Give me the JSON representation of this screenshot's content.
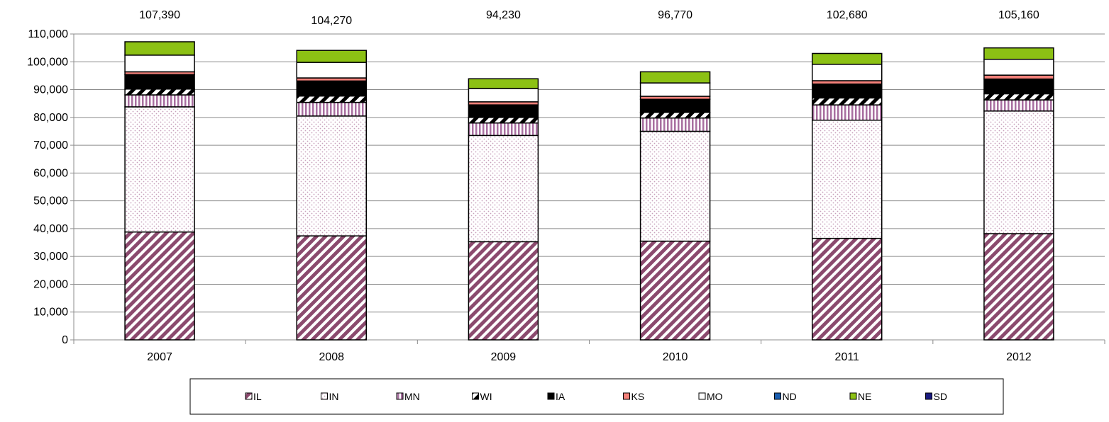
{
  "chart_data": {
    "type": "bar",
    "stacked": true,
    "categories": [
      "2007",
      "2008",
      "2009",
      "2010",
      "2011",
      "2012"
    ],
    "totals": [
      "107,390",
      "104,270",
      "94,230",
      "96,770",
      "102,680",
      "105,160"
    ],
    "ylim": [
      0,
      110000
    ],
    "yticks": [
      "0",
      "10,000",
      "20,000",
      "30,000",
      "40,000",
      "50,000",
      "60,000",
      "70,000",
      "80,000",
      "90,000",
      "100,000",
      "110,000"
    ],
    "grid": true,
    "legend_position": "bottom",
    "series": [
      {
        "name": "IL",
        "color": "#8b4a6e",
        "pattern": "diag-hatch",
        "values": [
          38800,
          37400,
          35300,
          35500,
          36500,
          38200
        ]
      },
      {
        "name": "IN",
        "color": "#d9b3cc",
        "pattern": "dots",
        "values": [
          45000,
          43100,
          38200,
          39500,
          42500,
          44100
        ]
      },
      {
        "name": "MN",
        "color": "#a86fa0",
        "pattern": "vertical-lines",
        "values": [
          4300,
          4900,
          4500,
          4800,
          5500,
          4000
        ]
      },
      {
        "name": "WI",
        "color": "#000000",
        "pattern": "diag-thick",
        "values": [
          2100,
          2300,
          2000,
          2000,
          2500,
          2200
        ]
      },
      {
        "name": "IA",
        "color": "#000000",
        "pattern": "solid",
        "values": [
          5200,
          5400,
          4500,
          4700,
          5000,
          5300
        ]
      },
      {
        "name": "KS",
        "color": "#f4817a",
        "pattern": "solid",
        "values": [
          1000,
          1100,
          1100,
          1100,
          1200,
          1400
        ]
      },
      {
        "name": "MO",
        "color": "#ffffff",
        "pattern": "solid",
        "values": [
          6000,
          5600,
          4800,
          4800,
          5900,
          5700
        ]
      },
      {
        "name": "ND",
        "color": "#1a5eb0",
        "pattern": "solid",
        "values": [
          0,
          0,
          0,
          0,
          0,
          0
        ]
      },
      {
        "name": "NE",
        "color": "#8cc114",
        "pattern": "solid",
        "values": [
          4800,
          4300,
          3500,
          4000,
          3900,
          4100
        ]
      },
      {
        "name": "SD",
        "color": "#1a1a80",
        "pattern": "solid",
        "values": [
          0,
          0,
          0,
          0,
          0,
          0
        ]
      }
    ]
  }
}
